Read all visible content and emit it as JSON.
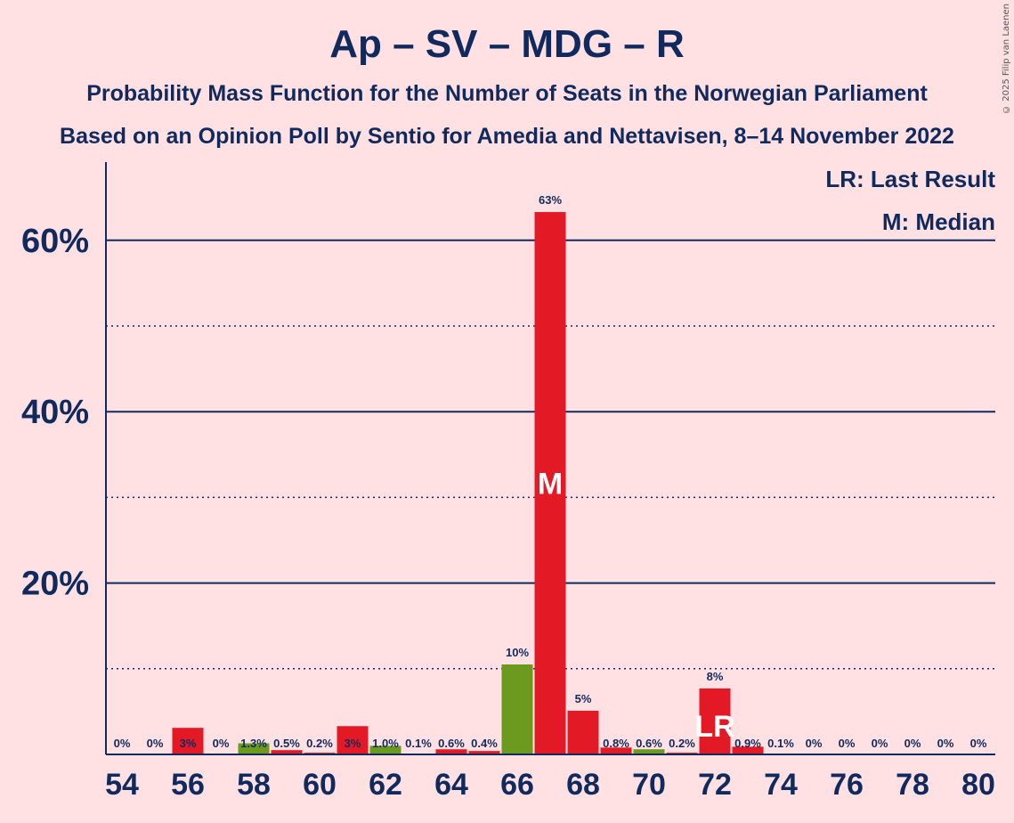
{
  "title": "Ap – SV – MDG – R",
  "subtitle1": "Probability Mass Function for the Number of Seats in the Norwegian Parliament",
  "subtitle2": "Based on an Opinion Poll by Sentio for Amedia and Nettavisen, 8–14 November 2022",
  "copyright": "© 2025 Filip van Laenen",
  "legend": {
    "last_result": "LR: Last Result",
    "median": "M: Median"
  },
  "colors": {
    "red": "#e31a25",
    "green": "#6b9a1f",
    "background": "#ffe1e3",
    "axis": "#102a5e"
  },
  "chart_data": {
    "type": "bar",
    "xlabel": "",
    "ylabel": "",
    "ylim": [
      0,
      69
    ],
    "yticks": [
      20,
      40,
      60
    ],
    "ytick_labels": [
      "20%",
      "40%",
      "60%"
    ],
    "dotted_gridlines": [
      10,
      30,
      50
    ],
    "xtick_labels": [
      "54",
      "56",
      "58",
      "60",
      "62",
      "64",
      "66",
      "68",
      "70",
      "72",
      "74",
      "76",
      "78",
      "80"
    ],
    "median": 67,
    "last_result": 72,
    "bars": [
      {
        "seats": 54,
        "value": 0,
        "label": "0%",
        "color": "red"
      },
      {
        "seats": 55,
        "value": 0,
        "label": "0%",
        "color": "red"
      },
      {
        "seats": 56,
        "value": 3.1,
        "label": "3%",
        "color": "red"
      },
      {
        "seats": 57,
        "value": 0,
        "label": "0%",
        "color": "red"
      },
      {
        "seats": 58,
        "value": 1.3,
        "label": "1.3%",
        "color": "green"
      },
      {
        "seats": 59,
        "value": 0.5,
        "label": "0.5%",
        "color": "red"
      },
      {
        "seats": 60,
        "value": 0.2,
        "label": "0.2%",
        "color": "red"
      },
      {
        "seats": 61,
        "value": 3.3,
        "label": "3%",
        "color": "red"
      },
      {
        "seats": 62,
        "value": 1.0,
        "label": "1.0%",
        "color": "green"
      },
      {
        "seats": 63,
        "value": 0.1,
        "label": "0.1%",
        "color": "red"
      },
      {
        "seats": 64,
        "value": 0.6,
        "label": "0.6%",
        "color": "red"
      },
      {
        "seats": 65,
        "value": 0.4,
        "label": "0.4%",
        "color": "red"
      },
      {
        "seats": 66,
        "value": 10.5,
        "label": "10%",
        "color": "green"
      },
      {
        "seats": 67,
        "value": 63.3,
        "label": "63%",
        "color": "red"
      },
      {
        "seats": 68,
        "value": 5.1,
        "label": "5%",
        "color": "red"
      },
      {
        "seats": 69,
        "value": 0.8,
        "label": "0.8%",
        "color": "red"
      },
      {
        "seats": 70,
        "value": 0.6,
        "label": "0.6%",
        "color": "green"
      },
      {
        "seats": 71,
        "value": 0.2,
        "label": "0.2%",
        "color": "red"
      },
      {
        "seats": 72,
        "value": 7.7,
        "label": "8%",
        "color": "red"
      },
      {
        "seats": 73,
        "value": 0.9,
        "label": "0.9%",
        "color": "red"
      },
      {
        "seats": 74,
        "value": 0.1,
        "label": "0.1%",
        "color": "red"
      },
      {
        "seats": 75,
        "value": 0,
        "label": "0%",
        "color": "red"
      },
      {
        "seats": 76,
        "value": 0,
        "label": "0%",
        "color": "red"
      },
      {
        "seats": 77,
        "value": 0,
        "label": "0%",
        "color": "red"
      },
      {
        "seats": 78,
        "value": 0,
        "label": "0%",
        "color": "red"
      },
      {
        "seats": 79,
        "value": 0,
        "label": "0%",
        "color": "red"
      },
      {
        "seats": 80,
        "value": 0,
        "label": "0%",
        "color": "red"
      }
    ]
  }
}
